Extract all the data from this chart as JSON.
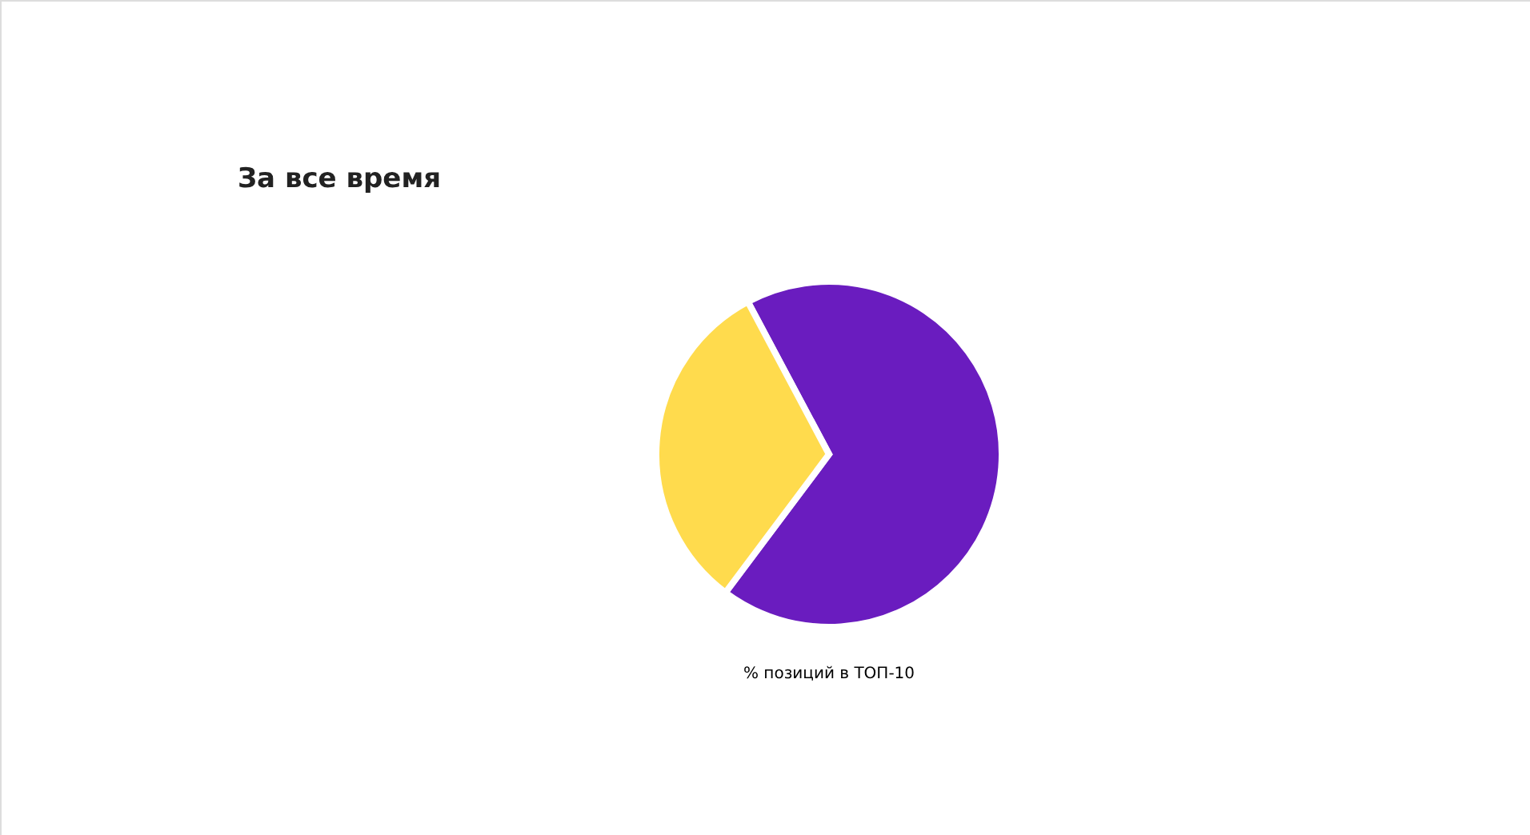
{
  "chart_data": {
    "type": "pie",
    "title": "За все время",
    "categories": [
      null,
      null
    ],
    "values": [
      68,
      32
    ],
    "colors": [
      "#6a1cbf",
      "#ffdb4d"
    ],
    "annotations": [
      "% позиций в ТОП-10"
    ]
  }
}
